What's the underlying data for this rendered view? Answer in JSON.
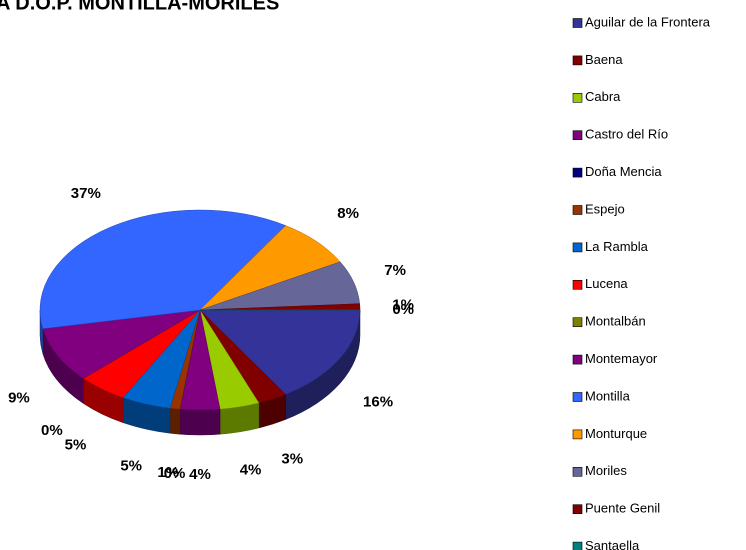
{
  "chart_data": {
    "type": "pie3d",
    "title": "A D.O.P. MONTILLA-MORILES",
    "categories": [
      "Aguilar de la Frontera",
      "Baena",
      "Cabra",
      "Castro del Río",
      "Doña Mencia",
      "Espejo",
      "La Rambla",
      "Lucena",
      "Montalbán",
      "Montemayor",
      "Montilla",
      "Monturque",
      "Moriles",
      "Puente Genil",
      "Santaella"
    ],
    "values": [
      16,
      3,
      4,
      4,
      0,
      1,
      5,
      5,
      0,
      9,
      37,
      8,
      7,
      1,
      0
    ],
    "value_labels": [
      "16%",
      "3%",
      "4%",
      "4%",
      "0%",
      "1%",
      "5%",
      "5%",
      "0%",
      "9%",
      "37%",
      "8%",
      "7%",
      "1%",
      "0%"
    ],
    "colors": [
      "#333399",
      "#800000",
      "#99cc00",
      "#800080",
      "#000080",
      "#993300",
      "#0066cc",
      "#ff0000",
      "#808000",
      "#800080",
      "#3366ff",
      "#ff9900",
      "#666699",
      "#800000",
      "#008080"
    ]
  }
}
